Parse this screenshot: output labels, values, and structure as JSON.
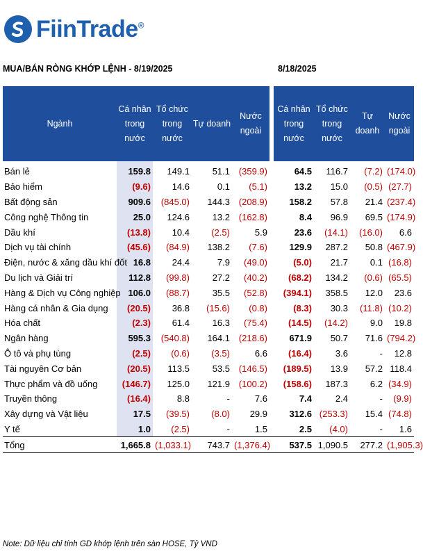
{
  "brand": {
    "name": "FiinTrade",
    "reg": "®",
    "color": "#1e5fae"
  },
  "titles": {
    "left": "MUA/BÁN RÒNG KHỚP LỆNH - 8/19/2025",
    "right": "8/18/2025"
  },
  "headers": {
    "sector": "Ngành",
    "individual": "Cá nhân trong nước",
    "institution": "Tổ chức trong nước",
    "proprietary": "Tự doanh",
    "foreign": "Nước ngoài"
  },
  "rows": [
    {
      "sector": "Bán lẻ",
      "d1": [
        "159.8",
        "149.1",
        "51.1",
        "(359.9)"
      ],
      "d2": [
        "64.5",
        "116.7",
        "(7.2)",
        "(174.0)"
      ]
    },
    {
      "sector": "Bảo hiểm",
      "d1": [
        "(9.6)",
        "14.6",
        "0.1",
        "(5.1)"
      ],
      "d2": [
        "13.2",
        "15.0",
        "(0.5)",
        "(27.7)"
      ]
    },
    {
      "sector": "Bất động sản",
      "d1": [
        "909.6",
        "(845.0)",
        "144.3",
        "(208.9)"
      ],
      "d2": [
        "158.2",
        "57.8",
        "21.4",
        "(237.4)"
      ]
    },
    {
      "sector": "Công nghệ Thông tin",
      "d1": [
        "25.0",
        "124.6",
        "13.2",
        "(162.8)"
      ],
      "d2": [
        "8.4",
        "96.9",
        "69.5",
        "(174.9)"
      ]
    },
    {
      "sector": "Dầu khí",
      "d1": [
        "(13.8)",
        "10.4",
        "(2.5)",
        "5.9"
      ],
      "d2": [
        "23.6",
        "(14.1)",
        "(16.0)",
        "6.6"
      ]
    },
    {
      "sector": "Dịch vụ tài chính",
      "d1": [
        "(45.6)",
        "(84.9)",
        "138.2",
        "(7.6)"
      ],
      "d2": [
        "129.9",
        "287.2",
        "50.8",
        "(467.9)"
      ]
    },
    {
      "sector": "Điện, nước & xăng dầu khí đốt",
      "d1": [
        "16.8",
        "24.4",
        "7.9",
        "(49.0)"
      ],
      "d2": [
        "(5.0)",
        "21.7",
        "0.1",
        "(16.8)"
      ]
    },
    {
      "sector": "Du lịch và Giải trí",
      "d1": [
        "112.8",
        "(99.8)",
        "27.2",
        "(40.2)"
      ],
      "d2": [
        "(68.2)",
        "134.2",
        "(0.6)",
        "(65.5)"
      ]
    },
    {
      "sector": "Hàng & Dịch vụ Công nghiệp",
      "d1": [
        "106.0",
        "(88.7)",
        "35.5",
        "(52.8)"
      ],
      "d2": [
        "(394.1)",
        "358.5",
        "12.0",
        "23.6"
      ]
    },
    {
      "sector": "Hàng cá nhân & Gia dụng",
      "d1": [
        "(20.5)",
        "36.8",
        "(15.6)",
        "(0.8)"
      ],
      "d2": [
        "(8.3)",
        "30.3",
        "(11.8)",
        "(10.2)"
      ]
    },
    {
      "sector": "Hóa chất",
      "d1": [
        "(2.3)",
        "61.4",
        "16.3",
        "(75.4)"
      ],
      "d2": [
        "(14.5)",
        "(14.2)",
        "9.0",
        "19.8"
      ]
    },
    {
      "sector": "Ngân hàng",
      "d1": [
        "595.3",
        "(540.8)",
        "164.1",
        "(218.6)"
      ],
      "d2": [
        "671.9",
        "50.7",
        "71.6",
        "(794.2)"
      ]
    },
    {
      "sector": "Ô tô và phụ tùng",
      "d1": [
        "(2.5)",
        "(0.6)",
        "(3.5)",
        "6.6"
      ],
      "d2": [
        "(16.4)",
        "3.6",
        "-",
        "12.8"
      ]
    },
    {
      "sector": "Tài nguyên Cơ bản",
      "d1": [
        "(20.5)",
        "113.5",
        "53.5",
        "(146.5)"
      ],
      "d2": [
        "(189.5)",
        "13.9",
        "57.2",
        "118.4"
      ]
    },
    {
      "sector": "Thực phẩm và đồ uống",
      "d1": [
        "(146.7)",
        "125.0",
        "121.9",
        "(100.2)"
      ],
      "d2": [
        "(158.6)",
        "187.3",
        "6.2",
        "(34.9)"
      ]
    },
    {
      "sector": "Truyền thông",
      "d1": [
        "(16.4)",
        "8.8",
        "-",
        "7.6"
      ],
      "d2": [
        "7.4",
        "2.4",
        "-",
        "(9.9)"
      ]
    },
    {
      "sector": "Xây dựng và Vật liệu",
      "d1": [
        "17.5",
        "(39.5)",
        "(8.0)",
        "29.9"
      ],
      "d2": [
        "312.6",
        "(253.3)",
        "15.4",
        "(74.8)"
      ]
    },
    {
      "sector": "Y tế",
      "d1": [
        "1.0",
        "(2.5)",
        "-",
        "1.5"
      ],
      "d2": [
        "2.5",
        "(4.0)",
        "-",
        "1.6"
      ]
    }
  ],
  "total": {
    "sector": "Tổng",
    "d1": [
      "1,665.8",
      "(1,033.1)",
      "743.7",
      "(1,376.4)"
    ],
    "d2": [
      "537.5",
      "1,090.5",
      "277.2",
      "(1,905.3)"
    ]
  },
  "note": "Note: Dữ liệu chỉ tính GD khớp lệnh trên sàn HOSE, Tỷ VND",
  "colors": {
    "header_bg": "#1f4e9d",
    "highlight_col": "#dfe3f1",
    "negative": "#c00000"
  }
}
